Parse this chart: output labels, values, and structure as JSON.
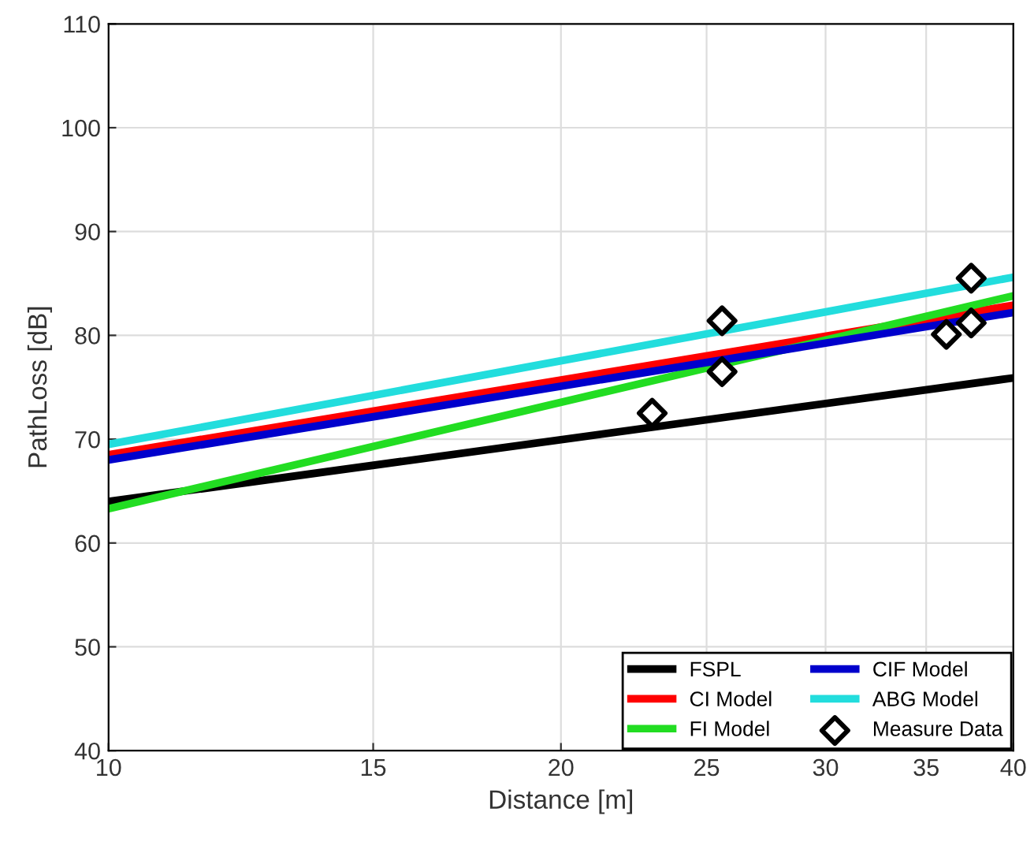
{
  "chart_data": {
    "type": "line",
    "xlabel": "Distance [m]",
    "ylabel": "PathLoss [dB]",
    "log": "x",
    "xlim": [
      10,
      40
    ],
    "xticks": [
      10,
      15,
      20,
      25,
      30,
      35,
      40
    ],
    "ylim": [
      40,
      110
    ],
    "yticks": [
      40,
      50,
      60,
      70,
      80,
      90,
      100,
      110
    ],
    "grid": true,
    "legend": "bottom right",
    "series": [
      {
        "name": "FSPL",
        "color": "#000000",
        "x": [
          10,
          40
        ],
        "values": [
          64.0,
          75.9
        ]
      },
      {
        "name": "CI Model",
        "color": "#ff0000",
        "x": [
          10,
          40
        ],
        "values": [
          68.5,
          82.9
        ]
      },
      {
        "name": "FI Model",
        "color": "#22dd22",
        "x": [
          10,
          40
        ],
        "values": [
          63.3,
          83.8
        ]
      },
      {
        "name": "CIF Model",
        "color": "#0000cc",
        "x": [
          10,
          40
        ],
        "values": [
          68.0,
          82.2
        ]
      },
      {
        "name": "ABG Model",
        "color": "#22dddd",
        "x": [
          10,
          40
        ],
        "values": [
          69.5,
          85.6
        ]
      },
      {
        "name": "Measure Data",
        "type": "scatter",
        "marker": "diamond",
        "color": "#000000",
        "x": [
          23.0,
          25.6,
          25.6,
          36.1,
          37.5,
          37.5
        ],
        "values": [
          72.5,
          81.4,
          76.5,
          80.1,
          85.5,
          81.2
        ]
      }
    ]
  }
}
